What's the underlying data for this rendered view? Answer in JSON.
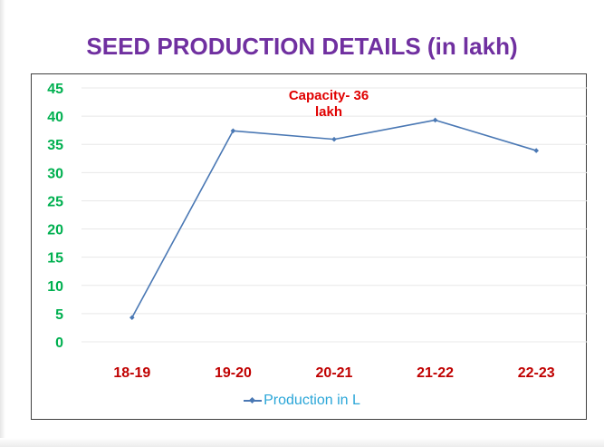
{
  "title": "SEED PRODUCTION DETAILS (in lakh)",
  "annotation": {
    "line1": "Capacity- 36",
    "line2": "lakh"
  },
  "colors": {
    "title": "#7030a0",
    "y_ticks": "#00b050",
    "x_ticks": "#c00000",
    "annotation": "#e00000",
    "series": "#4a78b4",
    "legend_text": "#2aa6d8",
    "grid": "#e8e8e8"
  },
  "chart_data": {
    "type": "line",
    "title": "SEED PRODUCTION DETAILS (in lakh)",
    "categories": [
      "18-19",
      "19-20",
      "20-21",
      "21-22",
      "22-23"
    ],
    "series": [
      {
        "name": "Production in L",
        "values": [
          4.3,
          37.4,
          35.9,
          39.3,
          33.9
        ]
      }
    ],
    "ylim": [
      0,
      45
    ],
    "yticks": [
      0,
      5,
      10,
      15,
      20,
      25,
      30,
      35,
      40,
      45
    ],
    "grid": true,
    "legend_position": "bottom"
  }
}
